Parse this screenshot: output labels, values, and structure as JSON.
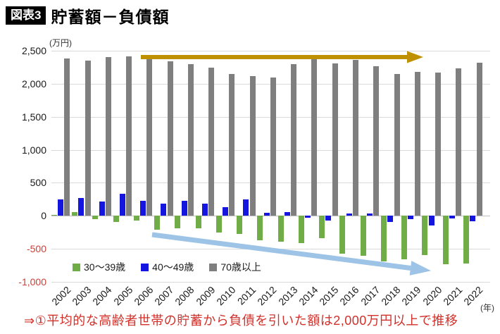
{
  "header": {
    "badge": "図表3",
    "title": "貯蓄額－負債額"
  },
  "y_axis": {
    "unit": "(万円)",
    "ticks": [
      {
        "label": "2,500",
        "value": 2500,
        "color": "#1a1a1a"
      },
      {
        "label": "2,000",
        "value": 2000,
        "color": "#1a1a1a"
      },
      {
        "label": "1,500",
        "value": 1500,
        "color": "#1a1a1a"
      },
      {
        "label": "1,000",
        "value": 1000,
        "color": "#1a1a1a"
      },
      {
        "label": "500",
        "value": 500,
        "color": "#1a1a1a"
      },
      {
        "label": "0",
        "value": 0,
        "color": "#1a1a1a"
      },
      {
        "label": "-500",
        "value": -500,
        "color": "#c8413b"
      },
      {
        "label": "-1,000",
        "value": -1000,
        "color": "#c8413b"
      }
    ]
  },
  "x_axis": {
    "unit": "(年)"
  },
  "caption": {
    "text": "⇒①平均的な高齢者世帯の貯蓄から負債を引いた額は2,000万円以上で推移",
    "color": "#d3302a"
  },
  "arrows": {
    "flat_top_arrow": {
      "color": "#BF9000"
    },
    "down_trend_arrow": {
      "color": "#9DC3E6"
    }
  },
  "chart_data": {
    "type": "bar",
    "title": "貯蓄額－負債額",
    "value_unit": "万円",
    "ylim": [
      -1000,
      2500
    ],
    "ytick_step": 500,
    "grid": true,
    "legend_position": "bottom",
    "categories": [
      2002,
      2003,
      2004,
      2005,
      2006,
      2007,
      2008,
      2009,
      2010,
      2011,
      2012,
      2013,
      2014,
      2015,
      2016,
      2017,
      2018,
      2019,
      2020,
      2021,
      2022
    ],
    "series": [
      {
        "key": "age30s",
        "name": "30〜39歳",
        "color": "#70AD47",
        "values": [
          10,
          60,
          -50,
          -90,
          -75,
          -210,
          -190,
          -185,
          -250,
          -270,
          -370,
          -390,
          -410,
          -340,
          -570,
          -610,
          -690,
          -660,
          -600,
          -730,
          -720
        ]
      },
      {
        "key": "age40s",
        "name": "40〜49歳",
        "color": "#1515E0",
        "values": [
          250,
          270,
          220,
          330,
          225,
          180,
          225,
          180,
          135,
          245,
          45,
          60,
          -30,
          -70,
          35,
          40,
          -95,
          -55,
          -150,
          -40,
          -80
        ]
      },
      {
        "key": "age70plus",
        "name": "70歳以上",
        "color": "#7F7F7F",
        "values": [
          2380,
          2355,
          2405,
          2420,
          2375,
          2340,
          2295,
          2240,
          2150,
          2120,
          2090,
          2295,
          2380,
          2310,
          2365,
          2270,
          2150,
          2180,
          2170,
          2235,
          2320
        ]
      }
    ]
  }
}
